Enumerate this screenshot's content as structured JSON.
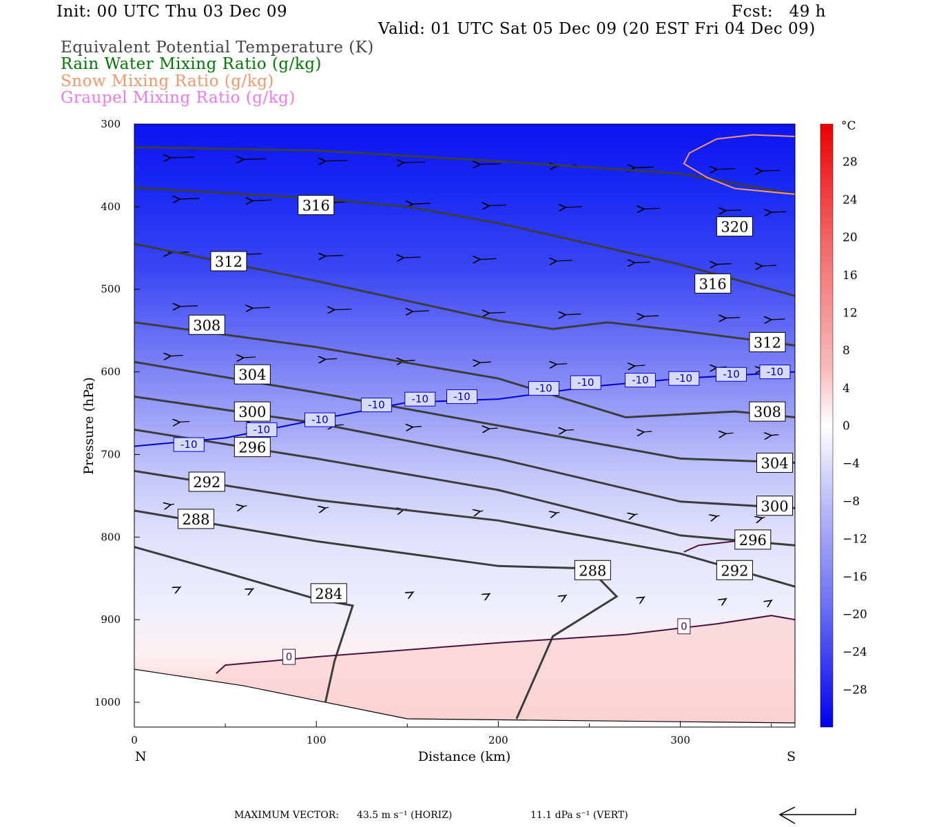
{
  "header": {
    "init": "Init: 00 UTC Thu 03 Dec 09",
    "fcst": "Fcst:   49 h",
    "valid": "Valid: 01 UTC Sat 05 Dec 09 (20 EST Fri 04 Dec 09)",
    "field1": "Equivalent Potential Temperature (K)",
    "field2": "Rain Water Mixing Ratio (g/kg)",
    "field3": "Snow Mixing Ratio (g/kg)",
    "field4": "Graupel Mixing Ratio (g/kg)"
  },
  "colors": {
    "field1": "#444444",
    "field2": "#007700",
    "field3": "#f4966a",
    "field4": "#ee77ee",
    "theta_line": "#3c3c3c",
    "temp_line": "#0000cc",
    "zero_line": "#4a1040",
    "snow_line": "#f4966a"
  },
  "footer": {
    "max_label": "MAXIMUM VECTOR:",
    "horiz": "43.5 m s⁻¹ (HORIZ)",
    "vert": "11.1 dPa s⁻¹ (VERT)"
  },
  "chart_data": {
    "type": "cross-section",
    "xlabel": "Distance (km)",
    "ylabel": "Pressure (hPa)",
    "x_ticks": [
      0,
      100,
      200,
      300
    ],
    "y_ticks": [
      300,
      400,
      500,
      600,
      700,
      800,
      900,
      1000
    ],
    "xlim": [
      0,
      363
    ],
    "ylim": [
      1030,
      300
    ],
    "x_end_labels": {
      "left": "N",
      "right": "S"
    },
    "colorbar": {
      "unit": "°C",
      "ticks": [
        28,
        24,
        20,
        16,
        12,
        8,
        4,
        0,
        -4,
        -8,
        -12,
        -16,
        -20,
        -24,
        -28
      ],
      "range": [
        -32,
        32
      ]
    },
    "theta_e_contours": [
      {
        "label": "320",
        "points": [
          [
            0,
            328
          ],
          [
            100,
            332
          ],
          [
            200,
            345
          ],
          [
            300,
            360
          ],
          [
            363,
            385
          ]
        ],
        "label_at": [
          320,
          424
        ]
      },
      {
        "label": "316",
        "points": [
          [
            0,
            377
          ],
          [
            100,
            390
          ],
          [
            150,
            400
          ],
          [
            200,
            420
          ],
          [
            300,
            470
          ],
          [
            363,
            508
          ]
        ],
        "label_at": [
          90,
          398
        ]
      },
      {
        "label": "316",
        "points": [],
        "label_at": [
          308,
          493
        ]
      },
      {
        "label": "312",
        "points": [
          [
            0,
            445
          ],
          [
            100,
            490
          ],
          [
            200,
            538
          ],
          [
            230,
            548
          ],
          [
            260,
            540
          ],
          [
            300,
            550
          ],
          [
            363,
            568
          ]
        ],
        "label_at": [
          42,
          466
        ]
      },
      {
        "label": "312",
        "points": [],
        "label_at": [
          338,
          564
        ]
      },
      {
        "label": "308",
        "points": [
          [
            0,
            540
          ],
          [
            100,
            570
          ],
          [
            200,
            608
          ],
          [
            270,
            655
          ],
          [
            330,
            648
          ],
          [
            363,
            655
          ]
        ],
        "label_at": [
          30,
          543
        ]
      },
      {
        "label": "308",
        "points": [],
        "label_at": [
          338,
          648
        ]
      },
      {
        "label": "304",
        "points": [
          [
            0,
            588
          ],
          [
            100,
            625
          ],
          [
            200,
            665
          ],
          [
            300,
            705
          ],
          [
            363,
            710
          ]
        ],
        "label_at": [
          55,
          603
        ]
      },
      {
        "label": "300",
        "points": [
          [
            0,
            630
          ],
          [
            100,
            662
          ],
          [
            200,
            705
          ],
          [
            300,
            757
          ],
          [
            363,
            765
          ]
        ],
        "label_at": [
          55,
          648
        ]
      },
      {
        "label": "304",
        "points": [],
        "label_at": [
          342,
          710
        ]
      },
      {
        "label": "296",
        "points": [
          [
            0,
            670
          ],
          [
            100,
            705
          ],
          [
            200,
            743
          ],
          [
            300,
            798
          ],
          [
            363,
            810
          ]
        ],
        "label_at": [
          55,
          691
        ]
      },
      {
        "label": "300",
        "points": [],
        "label_at": [
          342,
          762
        ]
      },
      {
        "label": "296",
        "points": [],
        "label_at": [
          330,
          803
        ]
      },
      {
        "label": "292",
        "points": [
          [
            0,
            720
          ],
          [
            100,
            755
          ],
          [
            200,
            780
          ],
          [
            300,
            820
          ],
          [
            363,
            860
          ]
        ],
        "label_at": [
          30,
          733
        ]
      },
      {
        "label": "292",
        "points": [],
        "label_at": [
          320,
          840
        ]
      },
      {
        "label": "288",
        "points": [
          [
            0,
            768
          ],
          [
            100,
            805
          ],
          [
            200,
            835
          ],
          [
            250,
            838
          ],
          [
            265,
            872
          ],
          [
            230,
            920
          ],
          [
            210,
            1020
          ]
        ],
        "label_at": [
          24,
          778
        ]
      },
      {
        "label": "288",
        "points": [],
        "label_at": [
          242,
          840
        ]
      },
      {
        "label": "284",
        "points": [
          [
            0,
            812
          ],
          [
            50,
            843
          ],
          [
            100,
            875
          ],
          [
            120,
            883
          ],
          [
            110,
            950
          ],
          [
            105,
            1000
          ]
        ],
        "label_at": [
          97,
          868
        ]
      }
    ],
    "temp_contours": [
      {
        "label": "-10",
        "points": [
          [
            0,
            690
          ],
          [
            50,
            680
          ],
          [
            100,
            658
          ],
          [
            150,
            637
          ],
          [
            200,
            633
          ],
          [
            250,
            618
          ],
          [
            300,
            608
          ],
          [
            363,
            600
          ]
        ]
      },
      {
        "label": "0",
        "points": [
          [
            45,
            965
          ],
          [
            50,
            955
          ],
          [
            100,
            945
          ],
          [
            200,
            928
          ],
          [
            270,
            918
          ],
          [
            320,
            905
          ],
          [
            350,
            895
          ],
          [
            363,
            900
          ]
        ]
      },
      {
        "label": "0",
        "points": [
          [
            302,
            818
          ],
          [
            310,
            810
          ],
          [
            330,
            805
          ]
        ]
      }
    ],
    "snow_contour": {
      "points": [
        [
          363,
          315
        ],
        [
          340,
          313
        ],
        [
          320,
          318
        ],
        [
          305,
          335
        ],
        [
          302,
          348
        ],
        [
          315,
          365
        ],
        [
          330,
          378
        ],
        [
          363,
          385
        ]
      ]
    },
    "wind_vectors_present": true
  }
}
